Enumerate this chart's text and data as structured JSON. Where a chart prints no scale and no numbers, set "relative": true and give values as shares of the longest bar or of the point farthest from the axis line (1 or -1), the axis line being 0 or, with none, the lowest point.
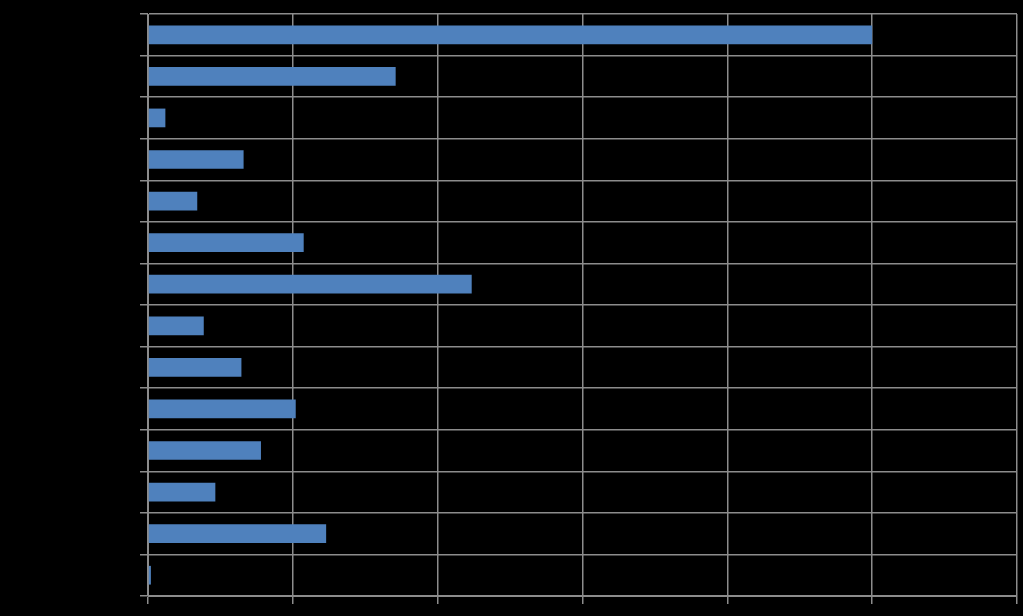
{
  "chart_data": {
    "type": "bar",
    "orientation": "horizontal",
    "relative": true,
    "grid": true,
    "color": "#4f81bd",
    "categories": [
      null,
      null,
      null,
      null,
      null,
      null,
      null,
      null,
      null,
      null,
      null,
      null,
      null,
      null
    ],
    "values": [
      1,
      0.342,
      0.024,
      0.132,
      0.068,
      0.215,
      0.447,
      0.077,
      0.129,
      0.204,
      0.156,
      0.093,
      0.246,
      0.004
    ]
  }
}
